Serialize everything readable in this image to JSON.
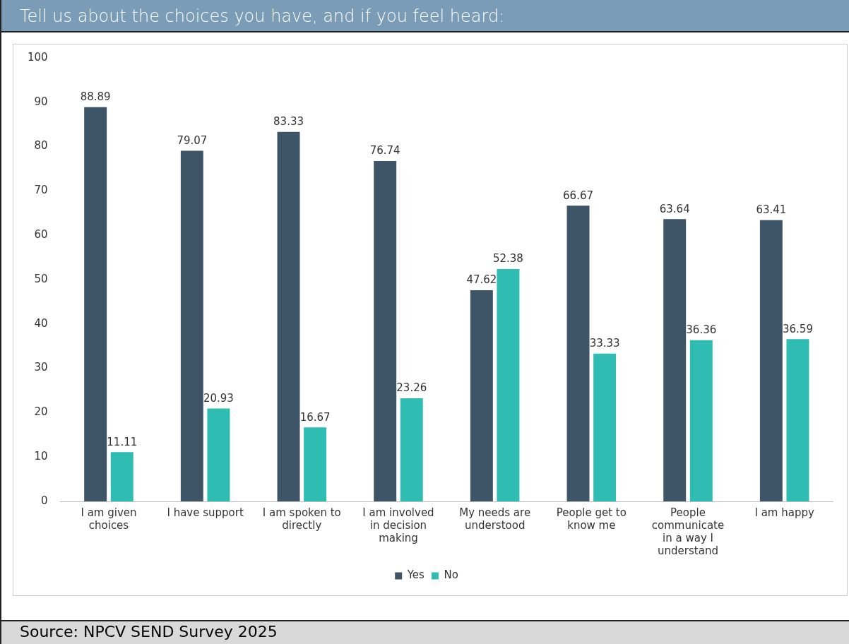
{
  "chart_data": {
    "type": "bar",
    "title": "Tell us about the choices you have, and if you feel heard:",
    "categories": [
      "I am given\nchoices",
      "I have support",
      "I am spoken to\ndirectly",
      "I am involved\nin decision\nmaking",
      "My needs are\nunderstood",
      "People get to\nknow me",
      "People\ncommunicate\nin a way I\nunderstand",
      "I am happy"
    ],
    "series": [
      {
        "name": "Yes",
        "color": "#3d5567",
        "values": [
          88.89,
          79.07,
          83.33,
          76.74,
          47.62,
          66.67,
          63.64,
          63.41
        ]
      },
      {
        "name": "No",
        "color": "#2ebcb3",
        "values": [
          11.11,
          20.93,
          16.67,
          23.26,
          52.38,
          33.33,
          36.36,
          36.59
        ]
      }
    ],
    "ylim": [
      0,
      100
    ],
    "yticks": [
      0,
      10,
      20,
      30,
      40,
      50,
      60,
      70,
      80,
      90,
      100
    ],
    "grid": false,
    "legend": "bottom",
    "data_labels": true,
    "annotations": [
      "Source: NPCV SEND Survey 2025"
    ]
  }
}
